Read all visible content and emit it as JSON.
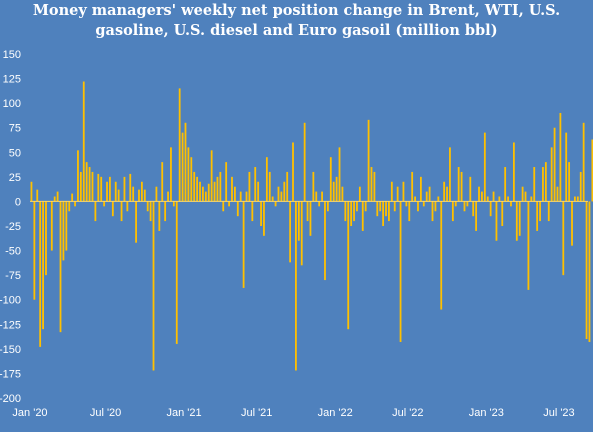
{
  "chart_data": {
    "type": "bar",
    "title_lines": [
      "Money managers' weekly net position change in Brent, WTI, U.S.",
      "gasoline, U.S. diesel and Euro gasoil (million bbl)"
    ],
    "xlabel": "",
    "ylabel": "",
    "ylim": [
      -200,
      150
    ],
    "yticks": [
      150,
      125,
      100,
      75,
      50,
      25,
      0,
      -25,
      -50,
      -75,
      -100,
      -125,
      -150,
      -175,
      -200
    ],
    "xlim_weeks": [
      0,
      192
    ],
    "xticks": [
      {
        "label": "Jan '20",
        "week": 0
      },
      {
        "label": "Jul '20",
        "week": 26
      },
      {
        "label": "Jan '21",
        "week": 53
      },
      {
        "label": "Jul '21",
        "week": 78
      },
      {
        "label": "Jan '22",
        "week": 105
      },
      {
        "label": "Jul '22",
        "week": 130
      },
      {
        "label": "Jan '23",
        "week": 157
      },
      {
        "label": "Jul '23",
        "week": 182
      }
    ],
    "grid": false,
    "legend": "none",
    "bar_color": "#ffc000",
    "series": [
      {
        "start": "2020-01-07",
        "interval": "weekly",
        "values": [
          20,
          -100,
          12,
          -148,
          -130,
          -75,
          0,
          -50,
          5,
          10,
          -133,
          -60,
          -50,
          -10,
          8,
          -5,
          52,
          30,
          122,
          40,
          35,
          30,
          -20,
          28,
          25,
          -5,
          20,
          25,
          -15,
          20,
          12,
          -20,
          25,
          -10,
          28,
          15,
          -42,
          12,
          20,
          12,
          -10,
          -20,
          -172,
          15,
          -30,
          40,
          -20,
          10,
          55,
          -5,
          -145,
          115,
          70,
          80,
          55,
          45,
          30,
          25,
          20,
          15,
          10,
          18,
          52,
          20,
          25,
          30,
          -10,
          40,
          -5,
          25,
          15,
          -15,
          10,
          -88,
          10,
          30,
          -20,
          35,
          20,
          -25,
          -35,
          45,
          30,
          5,
          -5,
          15,
          10,
          20,
          30,
          -62,
          60,
          -172,
          -40,
          -65,
          80,
          -20,
          -35,
          30,
          10,
          -5,
          10,
          -80,
          -10,
          45,
          20,
          25,
          55,
          15,
          -20,
          -130,
          -25,
          -20,
          -10,
          15,
          -30,
          -10,
          83,
          35,
          30,
          -15,
          -10,
          -25,
          -15,
          -20,
          20,
          -10,
          15,
          -143,
          20,
          -5,
          -20,
          30,
          5,
          -10,
          25,
          -5,
          10,
          15,
          -20,
          -10,
          5,
          -110,
          20,
          15,
          55,
          -20,
          -5,
          35,
          30,
          -10,
          -5,
          25,
          -15,
          -30,
          15,
          10,
          70,
          5,
          -15,
          10,
          -40,
          5,
          -25,
          35,
          5,
          -5,
          60,
          -40,
          -35,
          15,
          10,
          -90,
          5,
          35,
          -30,
          -20,
          35,
          40,
          -20,
          55,
          75,
          15,
          90,
          -75,
          70,
          40,
          -45,
          5,
          5,
          30,
          80,
          -140,
          -143,
          63
        ]
      }
    ]
  }
}
